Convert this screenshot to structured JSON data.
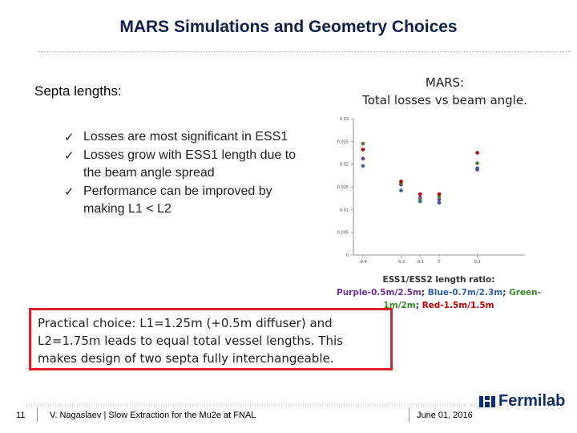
{
  "header": {
    "title": "MARS Simulations and Geometry Choices"
  },
  "left": {
    "heading": "Septa lengths:",
    "bullets": [
      "Losses are most significant in ESS1",
      "Losses grow with ESS1 length due to the beam angle spread",
      "Performance can be improved by making L1 < L2"
    ]
  },
  "right": {
    "caption_line1": "MARS:",
    "caption_line2": "Total losses vs beam angle.",
    "ratio_label": "ESS1/ESS2 length ratio:",
    "ratio_purple": "Purple-0.5m/2.5m",
    "ratio_blue": "Blue-0.7m/2.3m",
    "ratio_green": "Green-1m/2m",
    "ratio_red": "Red-1.5m/1.5m"
  },
  "choice_box": {
    "text": "Practical choice: L1=1.25m (+0.5m diffuser) and L2=1.75m leads to equal total vessel lengths. This makes design of two septa fully interchangeable."
  },
  "footer": {
    "page_number": "11",
    "author": "V. Nagaslaev | Slow Extraction for the Mu2e at FNAL",
    "date": "June 01, 2016",
    "logo_text": "Fermilab"
  },
  "colors": {
    "purple": "#7030a0",
    "blue": "#2f5fae",
    "green": "#3b8a2b",
    "red": "#c00000",
    "box_border": "#e0202a"
  },
  "chart_data": {
    "type": "scatter",
    "title": "",
    "xlabel": "",
    "ylabel": "",
    "xlim": [
      -0.45,
      0.45
    ],
    "ylim": [
      0,
      0.03
    ],
    "x_ticks": [
      "-0.4",
      "-0.2",
      "-0.1",
      "0",
      "0.2"
    ],
    "x_tick_values": [
      -0.4,
      -0.2,
      -0.1,
      0,
      0.2
    ],
    "y_ticks": [
      "0",
      "0.005",
      "0.01",
      "0.015",
      "0.02",
      "0.025",
      "0.03"
    ],
    "y_tick_values": [
      0,
      0.005,
      0.01,
      0.015,
      0.02,
      0.025,
      0.03
    ],
    "grid": false,
    "series": [
      {
        "name": "Purple",
        "color": "#7030a0",
        "x": [
          -0.4,
          -0.2,
          -0.1,
          0,
          0.2
        ],
        "y": [
          0.0212,
          0.0155,
          0.0126,
          0.0122,
          0.0188
        ]
      },
      {
        "name": "Blue",
        "color": "#2f5fae",
        "x": [
          -0.4,
          -0.2,
          -0.1,
          0,
          0.2
        ],
        "y": [
          0.0196,
          0.0142,
          0.0118,
          0.0115,
          0.0191
        ]
      },
      {
        "name": "Green",
        "color": "#3b8a2b",
        "x": [
          -0.4,
          -0.2,
          -0.1,
          0,
          0.2
        ],
        "y": [
          0.0245,
          0.0158,
          0.0121,
          0.0128,
          0.0202
        ]
      },
      {
        "name": "Red",
        "color": "#c00000",
        "x": [
          -0.4,
          -0.2,
          -0.1,
          0,
          0.2
        ],
        "y": [
          0.0232,
          0.0162,
          0.0134,
          0.0134,
          0.0225
        ]
      }
    ]
  }
}
